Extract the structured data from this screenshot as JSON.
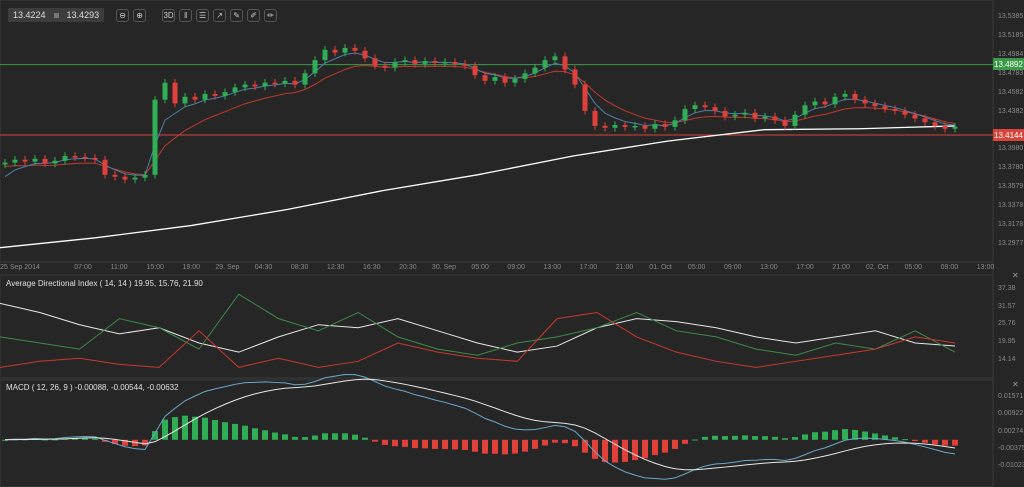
{
  "toolbar": {
    "price_low": "13.4224",
    "price_high": "13.4293",
    "buttons": [
      {
        "icon": "zoom-out-icon",
        "glyph": "⊖"
      },
      {
        "icon": "zoom-in-icon",
        "glyph": "⊕"
      },
      {
        "icon": "3d-view-icon",
        "glyph": "3D"
      },
      {
        "icon": "chart-type-icon",
        "glyph": "ǁ"
      },
      {
        "icon": "indicators-icon",
        "glyph": "☰"
      },
      {
        "icon": "export-icon",
        "glyph": "↗"
      },
      {
        "icon": "objects-icon",
        "glyph": "✎"
      },
      {
        "icon": "edit-icon",
        "glyph": "✐"
      },
      {
        "icon": "draw-icon",
        "glyph": "✏"
      }
    ]
  },
  "chart_data": [
    {
      "type": "candlestick",
      "price_axis_ticks": [
        "13.5385",
        "13.5185",
        "13.4984",
        "13.4783",
        "13.4582",
        "13.4382",
        "13.3980",
        "13.3780",
        "13.3579",
        "13.3378",
        "13.3178",
        "13.2977"
      ],
      "time_axis_ticks": [
        "25 Sep 2014",
        "07:00",
        "11:00",
        "15:00",
        "19:00",
        "29. Sep",
        "04:30",
        "08:30",
        "12:30",
        "16:30",
        "20:30",
        "30. Sep",
        "05:00",
        "09:00",
        "13:00",
        "17:00",
        "21:00",
        "01. Oct",
        "05:00",
        "09:00",
        "13:00",
        "17:00",
        "21:00",
        "02. Oct",
        "05:00",
        "09:00",
        "13:00"
      ],
      "closes": [
        13.385,
        13.388,
        13.386,
        13.389,
        13.384,
        13.387,
        13.392,
        13.391,
        13.39,
        13.388,
        13.372,
        13.37,
        13.367,
        13.369,
        13.372,
        13.452,
        13.47,
        13.448,
        13.455,
        13.452,
        13.458,
        13.456,
        13.46,
        13.465,
        13.468,
        13.466,
        13.47,
        13.469,
        13.472,
        13.468,
        13.48,
        13.494,
        13.505,
        13.502,
        13.507,
        13.504,
        13.496,
        13.488,
        13.486,
        13.492,
        13.494,
        13.49,
        13.493,
        13.491,
        13.492,
        13.49,
        13.488,
        13.478,
        13.472,
        13.476,
        13.47,
        13.474,
        13.48,
        13.486,
        13.494,
        13.498,
        13.484,
        13.468,
        13.44,
        13.424,
        13.422,
        13.425,
        13.423,
        13.424,
        13.421,
        13.426,
        13.423,
        13.43,
        13.442,
        13.446,
        13.444,
        13.44,
        13.434,
        13.436,
        13.438,
        13.432,
        13.434,
        13.43,
        13.424,
        13.436,
        13.446,
        13.45,
        13.447,
        13.455,
        13.458,
        13.452,
        13.448,
        13.445,
        13.442,
        13.44,
        13.436,
        13.432,
        13.428,
        13.424,
        13.421,
        13.423
      ],
      "long_ma": [
        13.2945,
        13.305,
        13.318,
        13.335,
        13.355,
        13.372,
        13.392,
        13.408,
        13.42,
        13.421,
        13.424
      ],
      "horizontal_lines": [
        {
          "value": "13.4892",
          "color": "#3a9a4a"
        },
        {
          "value": "13.4144",
          "color": "#d9443a"
        }
      ],
      "colors": {
        "up": "#2fae55",
        "down": "#e0403a",
        "ma_fast": "#4a7fa8",
        "ma_mid": "#c0392b",
        "ma_long": "#ffffff"
      }
    },
    {
      "type": "line",
      "title": "Average Directional Index ( 14, 14 ) 19.95, 15.76, 21.90",
      "y_ticks": [
        "37.38",
        "31.57",
        "25.76",
        "19.95",
        "14.14"
      ],
      "ylim": [
        11,
        40
      ],
      "series": [
        {
          "color": "#e8e8e8",
          "values": [
            33,
            30,
            26,
            23,
            25,
            20,
            17,
            22,
            26,
            25,
            28,
            24,
            20,
            17,
            19,
            25,
            28,
            27,
            25,
            22,
            20,
            22,
            24,
            20,
            19
          ]
        },
        {
          "color": "#3d8a48",
          "values": [
            22,
            20,
            18,
            28,
            25,
            18,
            36,
            28,
            24,
            30,
            22,
            18,
            16,
            20,
            22,
            25,
            30,
            24,
            22,
            18,
            16,
            20,
            18,
            24,
            17
          ]
        },
        {
          "color": "#c8392e",
          "values": [
            12,
            14,
            15,
            13,
            12,
            24,
            12,
            15,
            12,
            14,
            20,
            17,
            15,
            14,
            28,
            30,
            22,
            17,
            14,
            12,
            14,
            16,
            18,
            22,
            20
          ]
        }
      ]
    },
    {
      "type": "macd",
      "title": "MACD ( 12, 26, 9 ) -0.00088, -0.00544, -0.00632",
      "y_ticks": [
        "0.01571",
        "0.00922",
        "0.00274",
        "-0.00375",
        "-0.01023"
      ],
      "params": [
        12,
        26,
        9
      ],
      "colors": {
        "macd": "#6aa8c8",
        "signal": "#e8e8e8",
        "hist_up": "#2fae55",
        "hist_down": "#e0403a"
      }
    }
  ]
}
